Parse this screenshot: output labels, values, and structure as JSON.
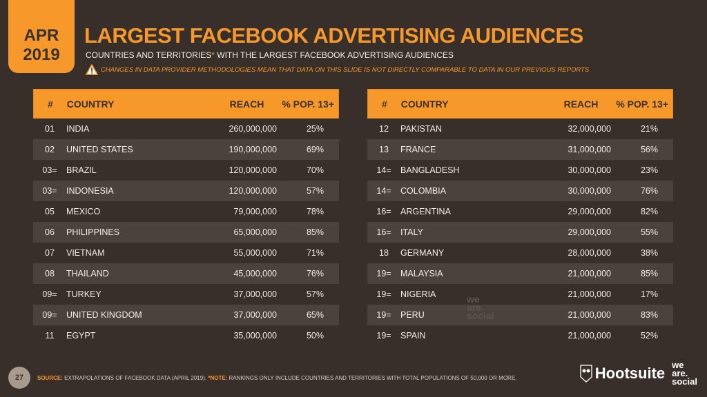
{
  "date": {
    "month": "APR",
    "year": "2019"
  },
  "title": "LARGEST FACEBOOK ADVERTISING AUDIENCES",
  "subtitle": "COUNTRIES AND TERRITORIES",
  "subtitle_asterisk": "*",
  "subtitle_rest": " WITH THE LARGEST FACEBOOK ADVERTISING AUDIENCES",
  "warning": "CHANGES IN DATA PROVIDER METHODOLOGIES MEAN THAT DATA ON THIS SLIDE IS NOT DIRECTLY COMPARABLE TO DATA IN OUR PREVIOUS REPORTS",
  "columns": [
    "#",
    "COUNTRY",
    "REACH",
    "% POP. 13+"
  ],
  "left": [
    [
      "01",
      "INDIA",
      "260,000,000",
      "25%"
    ],
    [
      "02",
      "UNITED STATES",
      "190,000,000",
      "69%"
    ],
    [
      "03=",
      "BRAZIL",
      "120,000,000",
      "70%"
    ],
    [
      "03=",
      "INDONESIA",
      "120,000,000",
      "57%"
    ],
    [
      "05",
      "MEXICO",
      "79,000,000",
      "78%"
    ],
    [
      "06",
      "PHILIPPINES",
      "65,000,000",
      "85%"
    ],
    [
      "07",
      "VIETNAM",
      "55,000,000",
      "71%"
    ],
    [
      "08",
      "THAILAND",
      "45,000,000",
      "76%"
    ],
    [
      "09=",
      "TURKEY",
      "37,000,000",
      "57%"
    ],
    [
      "09=",
      "UNITED KINGDOM",
      "37,000,000",
      "65%"
    ],
    [
      "11",
      "EGYPT",
      "35,000,000",
      "50%"
    ]
  ],
  "right": [
    [
      "12",
      "PAKISTAN",
      "32,000,000",
      "21%"
    ],
    [
      "13",
      "FRANCE",
      "31,000,000",
      "56%"
    ],
    [
      "14=",
      "BANGLADESH",
      "30,000,000",
      "23%"
    ],
    [
      "14=",
      "COLOMBIA",
      "30,000,000",
      "76%"
    ],
    [
      "16=",
      "ARGENTINA",
      "29,000,000",
      "82%"
    ],
    [
      "16=",
      "ITALY",
      "29,000,000",
      "55%"
    ],
    [
      "18",
      "GERMANY",
      "28,000,000",
      "38%"
    ],
    [
      "19=",
      "MALAYSIA",
      "21,000,000",
      "85%"
    ],
    [
      "19=",
      "NIGERIA",
      "21,000,000",
      "17%"
    ],
    [
      "19=",
      "PERU",
      "21,000,000",
      "83%"
    ],
    [
      "19=",
      "SPAIN",
      "21,000,000",
      "52%"
    ]
  ],
  "footer": {
    "page": "27",
    "source_label": "SOURCE:",
    "source": " EXTRAPOLATIONS OF FACEBOOK DATA (APRIL 2019). ",
    "note_label": "*NOTE:",
    "note": " RANKINGS ONLY INCLUDE COUNTRIES AND TERRITORIES WITH TOTAL POPULATIONS OF 50,000 OR MORE."
  },
  "logos": {
    "hootsuite": "Hootsuite",
    "we": "we",
    "are": "are.",
    "social": "social"
  },
  "colors": {
    "accent": "#f7992a",
    "background": "#382f2a",
    "stripe": "#4c423d"
  }
}
